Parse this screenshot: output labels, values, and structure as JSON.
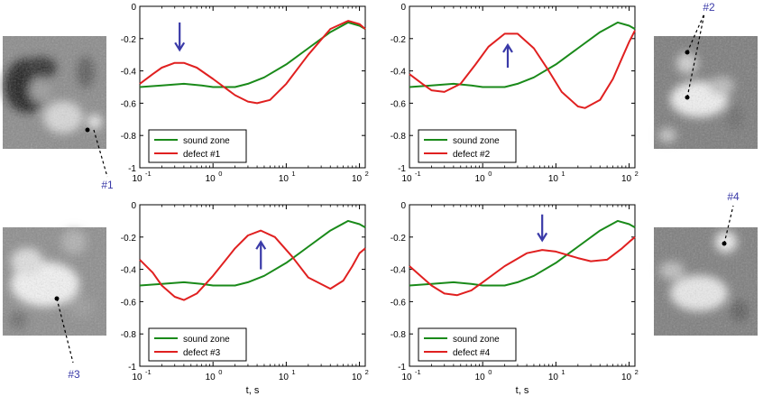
{
  "colors": {
    "sound": "#1a8a1a",
    "defect": "#e02020",
    "arrow": "#3a3aa8",
    "label": "#3a3aa8",
    "axis": "#000000"
  },
  "icons": [
    "arrow-down-icon",
    "arrow-up-icon"
  ],
  "chart_data": [
    {
      "type": "line",
      "panel": "top-left",
      "xscale": "log",
      "xlim": [
        0.1,
        120
      ],
      "ylim": [
        -1,
        0
      ],
      "xticks": [
        0.1,
        1,
        10,
        100
      ],
      "xtick_labels": [
        {
          "base": "10",
          "exp": "-1"
        },
        {
          "base": "10",
          "exp": "0"
        },
        {
          "base": "10",
          "exp": "1"
        },
        {
          "base": "10",
          "exp": "2"
        }
      ],
      "yticks": [
        "0",
        "-0.2",
        "-0.4",
        "-0.6",
        "-0.8",
        "-1"
      ],
      "xlabel": "",
      "legend_position": "bottom-left",
      "series": [
        {
          "name": "sound zone",
          "color_key": "sound",
          "x": [
            0.1,
            0.2,
            0.4,
            0.7,
            1,
            2,
            3,
            5,
            10,
            20,
            40,
            70,
            100,
            120
          ],
          "y": [
            -0.5,
            -0.49,
            -0.48,
            -0.49,
            -0.5,
            -0.5,
            -0.48,
            -0.44,
            -0.36,
            -0.26,
            -0.16,
            -0.1,
            -0.12,
            -0.14
          ]
        },
        {
          "name": "defect #1",
          "color_key": "defect",
          "x": [
            0.1,
            0.15,
            0.2,
            0.3,
            0.4,
            0.6,
            1,
            2,
            3,
            4,
            6,
            10,
            20,
            40,
            70,
            100,
            120
          ],
          "y": [
            -0.48,
            -0.42,
            -0.38,
            -0.35,
            -0.35,
            -0.38,
            -0.45,
            -0.55,
            -0.59,
            -0.6,
            -0.58,
            -0.48,
            -0.3,
            -0.14,
            -0.09,
            -0.11,
            -0.14
          ]
        }
      ],
      "annotation": {
        "type": "arrow",
        "direction": "down",
        "x": 0.35,
        "y_tail": -0.1,
        "y_head": -0.27
      }
    },
    {
      "type": "line",
      "panel": "top-right",
      "xscale": "log",
      "xlim": [
        0.1,
        120
      ],
      "ylim": [
        -1,
        0
      ],
      "xticks": [
        0.1,
        1,
        10,
        100
      ],
      "xtick_labels": [
        {
          "base": "10",
          "exp": "-1"
        },
        {
          "base": "10",
          "exp": "0"
        },
        {
          "base": "10",
          "exp": "1"
        },
        {
          "base": "10",
          "exp": "2"
        }
      ],
      "yticks": [
        "0",
        "-0.2",
        "-0.4",
        "-0.6",
        "-0.8",
        "-1"
      ],
      "xlabel": "",
      "legend_position": "bottom-left",
      "series": [
        {
          "name": "sound zone",
          "color_key": "sound",
          "x": [
            0.1,
            0.2,
            0.4,
            0.7,
            1,
            2,
            3,
            5,
            10,
            20,
            40,
            70,
            100,
            120
          ],
          "y": [
            -0.5,
            -0.49,
            -0.48,
            -0.49,
            -0.5,
            -0.5,
            -0.48,
            -0.44,
            -0.36,
            -0.26,
            -0.16,
            -0.1,
            -0.12,
            -0.14
          ]
        },
        {
          "name": "defect #2",
          "color_key": "defect",
          "x": [
            0.1,
            0.15,
            0.2,
            0.3,
            0.5,
            0.8,
            1.2,
            2,
            3,
            5,
            8,
            12,
            20,
            25,
            40,
            60,
            80,
            100,
            120
          ],
          "y": [
            -0.42,
            -0.48,
            -0.52,
            -0.53,
            -0.48,
            -0.36,
            -0.25,
            -0.17,
            -0.17,
            -0.26,
            -0.4,
            -0.53,
            -0.62,
            -0.63,
            -0.58,
            -0.45,
            -0.32,
            -0.22,
            -0.15
          ]
        }
      ],
      "annotation": {
        "type": "arrow",
        "direction": "up",
        "x": 2.2,
        "y_tail": -0.38,
        "y_head": -0.24
      }
    },
    {
      "type": "line",
      "panel": "bottom-left",
      "xscale": "log",
      "xlim": [
        0.1,
        120
      ],
      "ylim": [
        -1,
        0
      ],
      "xticks": [
        0.1,
        1,
        10,
        100
      ],
      "xtick_labels": [
        {
          "base": "10",
          "exp": "-1"
        },
        {
          "base": "10",
          "exp": "0"
        },
        {
          "base": "10",
          "exp": "1"
        },
        {
          "base": "10",
          "exp": "2"
        }
      ],
      "yticks": [
        "0",
        "-0.2",
        "-0.4",
        "-0.6",
        "-0.8",
        "-1"
      ],
      "xlabel": "t, s",
      "legend_position": "bottom-left",
      "series": [
        {
          "name": "sound zone",
          "color_key": "sound",
          "x": [
            0.1,
            0.2,
            0.4,
            0.7,
            1,
            2,
            3,
            5,
            10,
            20,
            40,
            70,
            100,
            120
          ],
          "y": [
            -0.5,
            -0.49,
            -0.48,
            -0.49,
            -0.5,
            -0.5,
            -0.48,
            -0.44,
            -0.36,
            -0.26,
            -0.16,
            -0.1,
            -0.12,
            -0.14
          ]
        },
        {
          "name": "defect #3",
          "color_key": "defect",
          "x": [
            0.1,
            0.15,
            0.2,
            0.3,
            0.4,
            0.6,
            1,
            2,
            3,
            4.5,
            7,
            12,
            20,
            40,
            60,
            80,
            100,
            120
          ],
          "y": [
            -0.34,
            -0.42,
            -0.5,
            -0.57,
            -0.59,
            -0.55,
            -0.44,
            -0.27,
            -0.19,
            -0.16,
            -0.2,
            -0.32,
            -0.45,
            -0.52,
            -0.47,
            -0.38,
            -0.3,
            -0.27
          ]
        }
      ],
      "annotation": {
        "type": "arrow",
        "direction": "up",
        "x": 4.5,
        "y_tail": -0.4,
        "y_head": -0.23
      }
    },
    {
      "type": "line",
      "panel": "bottom-right",
      "xscale": "log",
      "xlim": [
        0.1,
        120
      ],
      "ylim": [
        -1,
        0
      ],
      "xticks": [
        0.1,
        1,
        10,
        100
      ],
      "xtick_labels": [
        {
          "base": "10",
          "exp": "-1"
        },
        {
          "base": "10",
          "exp": "0"
        },
        {
          "base": "10",
          "exp": "1"
        },
        {
          "base": "10",
          "exp": "2"
        }
      ],
      "yticks": [
        "0",
        "-0.2",
        "-0.4",
        "-0.6",
        "-0.8",
        "-1"
      ],
      "xlabel": "t, s",
      "legend_position": "bottom-left",
      "series": [
        {
          "name": "sound zone",
          "color_key": "sound",
          "x": [
            0.1,
            0.2,
            0.4,
            0.7,
            1,
            2,
            3,
            5,
            10,
            20,
            40,
            70,
            100,
            120
          ],
          "y": [
            -0.5,
            -0.49,
            -0.48,
            -0.49,
            -0.5,
            -0.5,
            -0.48,
            -0.44,
            -0.36,
            -0.26,
            -0.16,
            -0.1,
            -0.12,
            -0.14
          ]
        },
        {
          "name": "defect #4",
          "color_key": "defect",
          "x": [
            0.1,
            0.15,
            0.2,
            0.3,
            0.45,
            0.7,
            1,
            2,
            4,
            6.5,
            10,
            20,
            30,
            50,
            80,
            100,
            120
          ],
          "y": [
            -0.38,
            -0.45,
            -0.5,
            -0.55,
            -0.56,
            -0.53,
            -0.48,
            -0.38,
            -0.3,
            -0.28,
            -0.29,
            -0.33,
            -0.35,
            -0.34,
            -0.27,
            -0.23,
            -0.2
          ]
        }
      ],
      "annotation": {
        "type": "arrow",
        "direction": "down",
        "x": 6.5,
        "y_tail": -0.06,
        "y_head": -0.22
      }
    }
  ],
  "thumbnails": [
    {
      "side": "left-top",
      "label": "#1",
      "tone": "dark",
      "marker_points": [
        [
          0.82,
          0.83
        ]
      ]
    },
    {
      "side": "right-top",
      "label": "#2",
      "tone": "bright",
      "marker_points": [
        [
          0.43,
          0.22
        ],
        [
          0.44,
          0.56
        ]
      ]
    },
    {
      "side": "left-bottom",
      "label": "#3",
      "tone": "bright",
      "marker_points": [
        [
          0.52,
          0.63
        ]
      ]
    },
    {
      "side": "right-bottom",
      "label": "#4",
      "tone": "bright",
      "marker_points": [
        [
          0.68,
          0.21
        ]
      ]
    }
  ]
}
